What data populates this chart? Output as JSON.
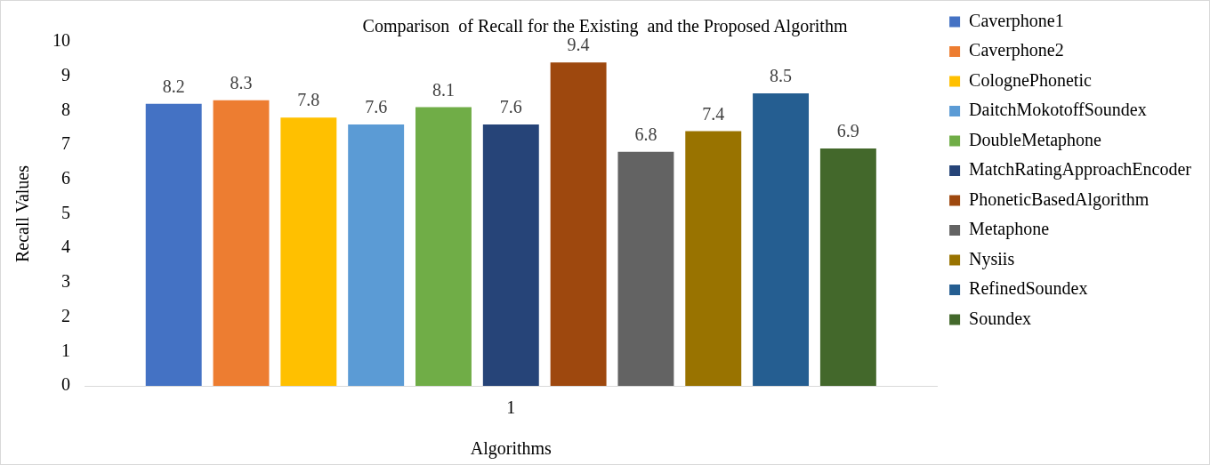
{
  "chart_data": {
    "type": "bar",
    "title": "Comparison  of Recall for the Existing  and the Proposed Algorithm",
    "xlabel": "Algorithms",
    "ylabel": "Recall Values",
    "categories": [
      "1"
    ],
    "series": [
      {
        "name": "Caverphone1",
        "color": "#4472c4",
        "values": [
          8.2
        ]
      },
      {
        "name": "Caverphone2",
        "color": "#ed7d31",
        "values": [
          8.3
        ]
      },
      {
        "name": "ColognePhonetic",
        "color": "#ffc000",
        "values": [
          7.8
        ]
      },
      {
        "name": "DaitchMokotoffSoundex",
        "color": "#5b9bd5",
        "values": [
          7.6
        ]
      },
      {
        "name": "DoubleMetaphone",
        "color": "#70ad47",
        "values": [
          8.1
        ]
      },
      {
        "name": "MatchRatingApproachEncoder",
        "color": "#264478",
        "values": [
          7.6
        ]
      },
      {
        "name": "PhoneticBasedAlgorithm",
        "color": "#9e480e",
        "values": [
          9.4
        ]
      },
      {
        "name": "Metaphone",
        "color": "#636363",
        "values": [
          6.8
        ]
      },
      {
        "name": "Nysiis",
        "color": "#997300",
        "values": [
          7.4
        ]
      },
      {
        "name": "RefinedSoundex",
        "color": "#255e91",
        "values": [
          8.5
        ]
      },
      {
        "name": "Soundex",
        "color": "#43682b",
        "values": [
          6.9
        ]
      }
    ],
    "ylim": [
      0,
      10
    ],
    "yticks": [
      0,
      1,
      2,
      3,
      4,
      5,
      6,
      7,
      8,
      9,
      10
    ],
    "grid": false,
    "legend": "right",
    "data_labels": true
  }
}
